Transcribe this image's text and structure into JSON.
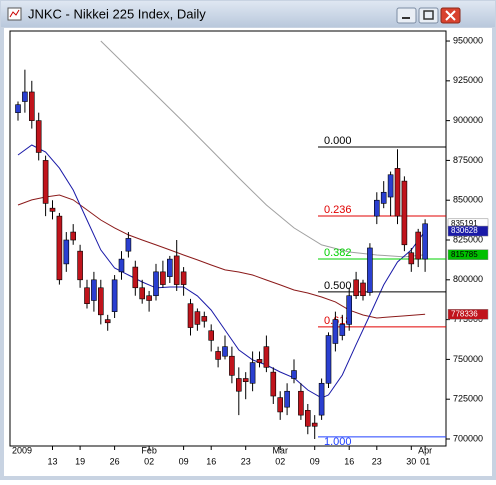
{
  "window": {
    "title": "JNKC - Nikkei 225 Index, Daily"
  },
  "chart_data": {
    "type": "candlestick",
    "categories": [
      null,
      null,
      null,
      null,
      null,
      "13",
      null,
      null,
      null,
      "19",
      null,
      null,
      null,
      null,
      "26",
      null,
      null,
      null,
      null,
      "02",
      null,
      null,
      null,
      null,
      "09",
      null,
      null,
      null,
      "16",
      null,
      null,
      null,
      null,
      "23",
      null,
      null,
      null,
      null,
      "02",
      null,
      null,
      null,
      null,
      "09",
      null,
      null,
      null,
      null,
      "16",
      null,
      null,
      null,
      "23",
      null,
      null,
      null,
      null,
      "30",
      null,
      "01"
    ],
    "months": [
      "2009",
      null,
      null,
      null,
      null,
      null,
      null,
      null,
      null,
      null,
      null,
      null,
      null,
      null,
      null,
      null,
      null,
      null,
      null,
      "Feb",
      null,
      null,
      null,
      null,
      null,
      null,
      null,
      null,
      null,
      null,
      null,
      null,
      null,
      null,
      null,
      null,
      null,
      null,
      "Mar",
      null,
      null,
      null,
      null,
      null,
      null,
      null,
      null,
      null,
      null,
      null,
      null,
      null,
      null,
      null,
      null,
      null,
      null,
      null,
      null,
      "Apr"
    ],
    "open": [
      905000,
      912000,
      918000,
      900000,
      875000,
      845000,
      840000,
      810000,
      830000,
      818000,
      795000,
      787000,
      795000,
      775000,
      780000,
      805000,
      818000,
      808000,
      795000,
      790000,
      790000,
      805000,
      802000,
      815000,
      805000,
      785000,
      780000,
      777000,
      768000,
      755000,
      752000,
      752000,
      738000,
      738000,
      735000,
      750000,
      758000,
      742000,
      726000,
      720000,
      738000,
      730000,
      718000,
      710000,
      715000,
      735000,
      760000,
      765000,
      772000,
      800000,
      798000,
      792000,
      840000,
      848000,
      852000,
      870000,
      862000,
      817000,
      830000,
      813000
    ],
    "high": [
      912000,
      932000,
      925000,
      905000,
      878000,
      850000,
      842000,
      830000,
      835000,
      822000,
      800000,
      805000,
      800000,
      778000,
      803000,
      818000,
      830000,
      812000,
      800000,
      793000,
      810000,
      812000,
      815000,
      825000,
      808000,
      788000,
      782000,
      780000,
      772000,
      758000,
      765000,
      758000,
      745000,
      742000,
      755000,
      755000,
      765000,
      745000,
      730000,
      735000,
      750000,
      735000,
      722000,
      715000,
      738000,
      767000,
      780000,
      778000,
      795000,
      805000,
      800000,
      823000,
      855000,
      862000,
      868000,
      882000,
      865000,
      820000,
      832000,
      838000
    ],
    "low": [
      900000,
      905000,
      895000,
      875000,
      840000,
      838000,
      797000,
      805000,
      822000,
      795000,
      782000,
      780000,
      772000,
      768000,
      776000,
      800000,
      814000,
      790000,
      785000,
      780000,
      787000,
      795000,
      798000,
      793000,
      790000,
      765000,
      768000,
      770000,
      755000,
      745000,
      750000,
      735000,
      715000,
      725000,
      730000,
      745000,
      742000,
      722000,
      712000,
      715000,
      735000,
      712000,
      703000,
      700000,
      712000,
      732000,
      755000,
      762000,
      768000,
      788000,
      787000,
      790000,
      835000,
      845000,
      840000,
      835000,
      818000,
      805000,
      808000,
      805000
    ],
    "close": [
      910000,
      918000,
      900000,
      880000,
      848000,
      843000,
      800000,
      825000,
      825000,
      800000,
      785000,
      800000,
      778000,
      773000,
      800000,
      813000,
      826000,
      795000,
      788000,
      787000,
      805000,
      797000,
      813000,
      797000,
      797000,
      770000,
      772000,
      774000,
      762000,
      750000,
      758000,
      740000,
      730000,
      736000,
      748000,
      748000,
      745000,
      727000,
      717000,
      730000,
      743000,
      715000,
      708000,
      708000,
      735000,
      765000,
      775000,
      772000,
      790000,
      790000,
      790000,
      820000,
      850000,
      855000,
      866000,
      840000,
      822000,
      810000,
      813000,
      835191
    ],
    "up_color": "#2a3fd0",
    "down_color": "#c0141c",
    "moving_averages": [
      {
        "color": "#a0a0a0",
        "x": [
          12,
          16,
          20,
          24,
          28,
          32,
          36,
          40,
          44,
          48,
          52,
          56,
          59
        ],
        "values": [
          950000,
          933000,
          916100,
          899100,
          881600,
          864000,
          847000,
          832600,
          821900,
          817500,
          815600,
          814400,
          815785
        ]
      },
      {
        "color": "#8b1a1a",
        "x": [
          0,
          2,
          4,
          6,
          8,
          10,
          12,
          14,
          16,
          18,
          20,
          22,
          24,
          26,
          28,
          30,
          32,
          34,
          36,
          38,
          40,
          42,
          44,
          46,
          48,
          50,
          52,
          54,
          56,
          59
        ],
        "values": [
          847000,
          850200,
          852000,
          853300,
          850200,
          843900,
          837600,
          832600,
          828200,
          825000,
          821900,
          818800,
          815600,
          812500,
          809300,
          806200,
          804900,
          803000,
          799900,
          796800,
          793600,
          791700,
          789200,
          786100,
          781000,
          777900,
          776000,
          776700,
          777300,
          778336
        ]
      },
      {
        "color": "#1a1aa8",
        "x": [
          0,
          2,
          4,
          6,
          8,
          10,
          12,
          14,
          16,
          18,
          20,
          22,
          24,
          26,
          28,
          30,
          32,
          34,
          36,
          38,
          40,
          42,
          44,
          45,
          47,
          49,
          51,
          53,
          55,
          57,
          59
        ],
        "values": [
          878400,
          884700,
          880300,
          870200,
          856400,
          837600,
          818800,
          807400,
          803000,
          798600,
          794900,
          795500,
          795500,
          789900,
          781000,
          768500,
          756000,
          749700,
          746500,
          742100,
          738400,
          730800,
          725800,
          727700,
          740200,
          759300,
          777900,
          796800,
          811200,
          818800,
          830628
        ]
      }
    ],
    "fibonacci": [
      {
        "label": "0.000",
        "value": 883400,
        "color": "#000000"
      },
      {
        "label": "0.236",
        "value": 840100,
        "color": "#e00000"
      },
      {
        "label": "0.382",
        "value": 813100,
        "color": "#00d000"
      },
      {
        "label": "0.500",
        "value": 792400,
        "color": "#000000"
      },
      {
        "label": "0.618",
        "value": 770400,
        "color": "#e00000"
      },
      {
        "label": "1.000",
        "value": 701300,
        "color": "#2040ff"
      }
    ],
    "price_markers": [
      {
        "value": 835191,
        "color": "#ffffff",
        "text_color": "#000000"
      },
      {
        "value": 830628,
        "color": "#1a1aa8",
        "text_color": "#ffffff"
      },
      {
        "value": 815785,
        "color": "#00c000",
        "text_color": "#000000"
      },
      {
        "value": 778336,
        "color": "#c0141c",
        "text_color": "#ffffff"
      }
    ],
    "ylim": [
      695600,
      956300
    ],
    "yticks": [
      950000,
      925000,
      900000,
      875000,
      850000,
      825000,
      800000,
      775000,
      750000,
      725000,
      700000
    ]
  }
}
